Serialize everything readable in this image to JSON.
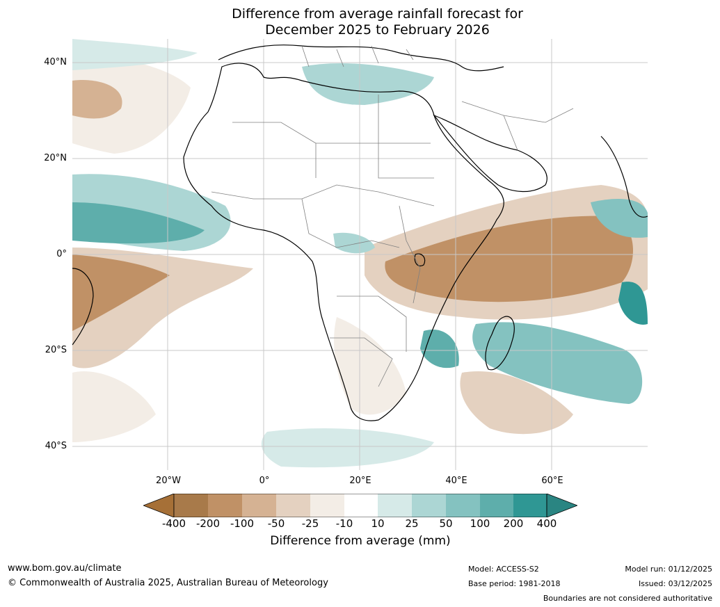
{
  "title_line1": "Difference from average rainfall forecast for",
  "title_line2": "December 2025 to February 2026",
  "lat_labels": [
    "40°N",
    "20°N",
    "0°",
    "20°S",
    "40°S"
  ],
  "lon_labels": [
    "20°W",
    "0°",
    "20°E",
    "40°E",
    "60°E"
  ],
  "colorbar": {
    "title": "Difference from average (mm)",
    "ticks": [
      "-400",
      "-200",
      "-100",
      "-50",
      "-25",
      "-10",
      "10",
      "25",
      "50",
      "100",
      "200",
      "400"
    ],
    "colors": [
      "#a67037",
      "#a87a4a",
      "#c09166",
      "#d5b293",
      "#e4d1c0",
      "#f3ede6",
      "#ffffff",
      "#d6eae8",
      "#acd6d4",
      "#84c2c0",
      "#5eaeab",
      "#2f9794",
      "#2a8582"
    ]
  },
  "footer": {
    "website": "www.bom.gov.au/climate",
    "copyright": "© Commonwealth of Australia 2025, Australian Bureau of Meteorology",
    "model": "Model: ACCESS-S2",
    "base_period": "Base period: 1981-2018",
    "model_run": "Model run: 01/12/2025",
    "issued": "Issued: 03/12/2025",
    "disclaimer": "Boundaries are not considered authoritative"
  },
  "map_colors": {
    "ocean": "#ffffff",
    "coast": "#000000",
    "border": "#808080",
    "grid": "#c8c8c8"
  }
}
